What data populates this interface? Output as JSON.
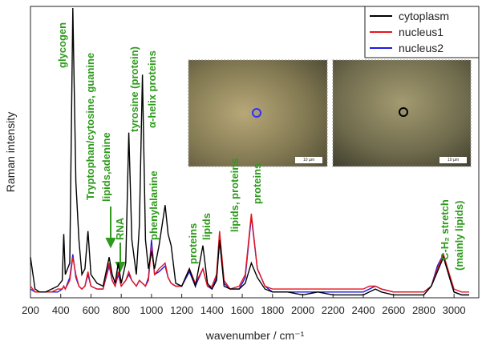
{
  "chart_data": {
    "type": "line",
    "xlabel": "wavenumber / cm⁻¹",
    "ylabel": "Raman intensity",
    "x": [
      200,
      230,
      260,
      300,
      340,
      380,
      410,
      420,
      430,
      460,
      480,
      500,
      520,
      540,
      560,
      580,
      600,
      640,
      680,
      720,
      740,
      760,
      780,
      800,
      830,
      850,
      870,
      900,
      920,
      940,
      960,
      980,
      1000,
      1020,
      1050,
      1090,
      1110,
      1130,
      1160,
      1200,
      1250,
      1290,
      1340,
      1370,
      1400,
      1430,
      1450,
      1480,
      1520,
      1580,
      1620,
      1660,
      1700,
      1750,
      1800,
      1900,
      2000,
      2100,
      2200,
      2300,
      2400,
      2440,
      2480,
      2520,
      2600,
      2700,
      2800,
      2850,
      2890,
      2930,
      2970,
      3000,
      3050,
      3100
    ],
    "series": [
      {
        "name": "cytoplasm",
        "color": "#000000",
        "values": [
          14,
          3,
          2,
          2,
          3,
          4,
          6,
          22,
          8,
          12,
          100,
          40,
          20,
          8,
          10,
          23,
          8,
          5,
          4,
          14,
          8,
          5,
          12,
          5,
          12,
          57,
          20,
          8,
          25,
          77,
          20,
          10,
          16,
          10,
          18,
          32,
          22,
          18,
          5,
          4,
          10,
          4,
          18,
          5,
          3,
          6,
          20,
          4,
          3,
          3,
          5,
          12,
          7,
          3,
          2,
          2,
          1,
          2,
          1,
          1,
          1,
          2,
          3,
          2,
          1,
          1,
          1,
          4,
          9,
          14,
          7,
          2,
          1,
          1
        ]
      },
      {
        "name": "nucleus1",
        "color": "#e8141c",
        "values": [
          4,
          2,
          2,
          2,
          2,
          3,
          3,
          4,
          3,
          6,
          14,
          8,
          4,
          3,
          4,
          9,
          4,
          3,
          3,
          12,
          6,
          4,
          9,
          4,
          6,
          9,
          6,
          4,
          6,
          5,
          4,
          6,
          18,
          8,
          10,
          12,
          7,
          5,
          4,
          4,
          10,
          5,
          10,
          4,
          4,
          8,
          23,
          6,
          3,
          4,
          8,
          29,
          10,
          4,
          3,
          3,
          3,
          3,
          3,
          3,
          3,
          4,
          4,
          3,
          2,
          2,
          2,
          4,
          10,
          15,
          8,
          3,
          2,
          2
        ]
      },
      {
        "name": "nucleus2",
        "color": "#1a1ae6",
        "values": [
          3,
          2,
          2,
          2,
          2,
          2,
          3,
          4,
          3,
          7,
          15,
          7,
          4,
          3,
          4,
          8,
          4,
          3,
          3,
          11,
          6,
          4,
          8,
          4,
          6,
          8,
          6,
          4,
          6,
          5,
          4,
          7,
          20,
          8,
          9,
          11,
          7,
          5,
          4,
          4,
          9,
          4,
          10,
          4,
          3,
          7,
          20,
          5,
          3,
          3,
          7,
          28,
          10,
          4,
          2,
          2,
          2,
          2,
          2,
          2,
          2,
          3,
          4,
          3,
          2,
          2,
          2,
          4,
          11,
          15,
          7,
          2,
          1,
          1
        ]
      }
    ],
    "xlim": [
      200,
      3100
    ],
    "ylim": [
      0,
      100
    ],
    "xticks": [
      200,
      400,
      600,
      800,
      1000,
      1200,
      1400,
      1600,
      1800,
      2000,
      2200,
      2400,
      2600,
      2800,
      3000
    ],
    "annotations": [
      "glycogen",
      "Tryptophan/cytosine, guanine",
      "lipids,adenine",
      "RNA",
      "tyrosine (protein)",
      "α-helix proteins",
      "phenylalanine",
      "proteins",
      "lipids",
      "lipids, proteins",
      "proteins",
      "C-H₂ stretch",
      "(mainly lipids)"
    ],
    "inset_labels": [
      "10 µm",
      "10 µm"
    ],
    "legend": "upper right"
  }
}
